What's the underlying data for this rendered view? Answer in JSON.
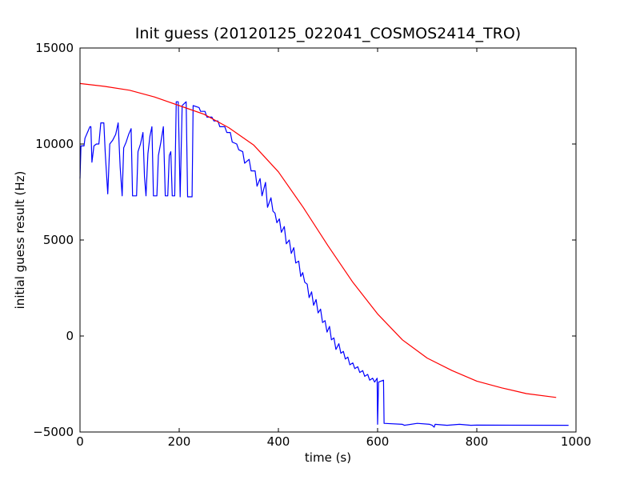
{
  "chart_data": {
    "type": "line",
    "title": "Init guess (20120125_022041_COSMOS2414_TRO)",
    "xlabel": "time (s)",
    "ylabel": "initial guess result (Hz)",
    "xlim": [
      0,
      1000
    ],
    "ylim": [
      -5000,
      15000
    ],
    "x_ticks": [
      0,
      200,
      400,
      600,
      800,
      1000
    ],
    "y_ticks": [
      -5000,
      0,
      5000,
      10000,
      15000
    ],
    "x_tick_labels": [
      "0",
      "200",
      "400",
      "600",
      "800",
      "1000"
    ],
    "y_tick_labels": [
      "−5000",
      "0",
      "5000",
      "10000",
      "15000"
    ],
    "grid": false,
    "legend": "none",
    "series": [
      {
        "color": "#0000ff",
        "points": [
          [
            0,
            8200
          ],
          [
            2,
            9900
          ],
          [
            8,
            9900
          ],
          [
            10,
            10300
          ],
          [
            15,
            10600
          ],
          [
            20,
            10900
          ],
          [
            22,
            10900
          ],
          [
            24,
            9050
          ],
          [
            28,
            9900
          ],
          [
            33,
            10000
          ],
          [
            38,
            10000
          ],
          [
            42,
            11100
          ],
          [
            48,
            11100
          ],
          [
            51,
            9500
          ],
          [
            56,
            7400
          ],
          [
            60,
            10000
          ],
          [
            66,
            10200
          ],
          [
            72,
            10500
          ],
          [
            77,
            11100
          ],
          [
            81,
            8800
          ],
          [
            85,
            7300
          ],
          [
            88,
            9800
          ],
          [
            93,
            10100
          ],
          [
            98,
            10500
          ],
          [
            103,
            10800
          ],
          [
            106,
            7300
          ],
          [
            114,
            7300
          ],
          [
            117,
            9600
          ],
          [
            122,
            10000
          ],
          [
            127,
            10600
          ],
          [
            130,
            8300
          ],
          [
            133,
            7300
          ],
          [
            137,
            9500
          ],
          [
            141,
            10400
          ],
          [
            145,
            10900
          ],
          [
            148,
            7300
          ],
          [
            155,
            7300
          ],
          [
            158,
            9400
          ],
          [
            163,
            10100
          ],
          [
            168,
            10900
          ],
          [
            172,
            7300
          ],
          [
            177,
            7300
          ],
          [
            180,
            9400
          ],
          [
            183,
            9600
          ],
          [
            186,
            7300
          ],
          [
            191,
            7300
          ],
          [
            194,
            12200
          ],
          [
            198,
            12200
          ],
          [
            202,
            7250
          ],
          [
            206,
            12000
          ],
          [
            210,
            12100
          ],
          [
            214,
            12200
          ],
          [
            217,
            7250
          ],
          [
            226,
            7250
          ],
          [
            228,
            12000
          ],
          [
            240,
            11900
          ],
          [
            243,
            11700
          ],
          [
            252,
            11700
          ],
          [
            256,
            11400
          ],
          [
            266,
            11400
          ],
          [
            270,
            11200
          ],
          [
            278,
            11200
          ],
          [
            282,
            10900
          ],
          [
            292,
            10900
          ],
          [
            296,
            10600
          ],
          [
            303,
            10600
          ],
          [
            307,
            10100
          ],
          [
            316,
            10000
          ],
          [
            320,
            9700
          ],
          [
            328,
            9600
          ],
          [
            332,
            9000
          ],
          [
            341,
            9200
          ],
          [
            345,
            8600
          ],
          [
            353,
            8600
          ],
          [
            357,
            7800
          ],
          [
            363,
            8200
          ],
          [
            367,
            7300
          ],
          [
            374,
            8000
          ],
          [
            378,
            6700
          ],
          [
            385,
            7200
          ],
          [
            389,
            6500
          ],
          [
            393,
            6400
          ],
          [
            397,
            5900
          ],
          [
            402,
            6100
          ],
          [
            406,
            5400
          ],
          [
            412,
            5700
          ],
          [
            416,
            4800
          ],
          [
            422,
            5000
          ],
          [
            426,
            4300
          ],
          [
            431,
            4600
          ],
          [
            435,
            3800
          ],
          [
            441,
            3900
          ],
          [
            445,
            3100
          ],
          [
            449,
            3300
          ],
          [
            453,
            2800
          ],
          [
            458,
            2700
          ],
          [
            462,
            2000
          ],
          [
            467,
            2300
          ],
          [
            471,
            1600
          ],
          [
            476,
            1900
          ],
          [
            480,
            1200
          ],
          [
            485,
            1400
          ],
          [
            489,
            700
          ],
          [
            494,
            800
          ],
          [
            498,
            200
          ],
          [
            503,
            500
          ],
          [
            507,
            -200
          ],
          [
            512,
            -100
          ],
          [
            516,
            -700
          ],
          [
            522,
            -400
          ],
          [
            526,
            -900
          ],
          [
            531,
            -800
          ],
          [
            535,
            -1200
          ],
          [
            540,
            -1100
          ],
          [
            544,
            -1500
          ],
          [
            550,
            -1400
          ],
          [
            554,
            -1700
          ],
          [
            560,
            -1600
          ],
          [
            564,
            -1900
          ],
          [
            570,
            -1800
          ],
          [
            574,
            -2100
          ],
          [
            580,
            -2000
          ],
          [
            584,
            -2300
          ],
          [
            590,
            -2200
          ],
          [
            594,
            -2400
          ],
          [
            599,
            -2200
          ],
          [
            600,
            -4600
          ],
          [
            602,
            -2400
          ],
          [
            612,
            -2300
          ],
          [
            613,
            -4550
          ],
          [
            650,
            -4600
          ],
          [
            654,
            -4650
          ],
          [
            680,
            -4550
          ],
          [
            705,
            -4600
          ],
          [
            710,
            -4650
          ],
          [
            714,
            -4750
          ],
          [
            716,
            -4600
          ],
          [
            740,
            -4650
          ],
          [
            765,
            -4600
          ],
          [
            788,
            -4650
          ],
          [
            800,
            -4640
          ],
          [
            985,
            -4650
          ]
        ]
      },
      {
        "color": "#ff0000",
        "points": [
          [
            0,
            13150
          ],
          [
            50,
            13000
          ],
          [
            100,
            12800
          ],
          [
            150,
            12450
          ],
          [
            200,
            12000
          ],
          [
            250,
            11550
          ],
          [
            300,
            10850
          ],
          [
            350,
            9950
          ],
          [
            400,
            8550
          ],
          [
            450,
            6700
          ],
          [
            500,
            4700
          ],
          [
            550,
            2800
          ],
          [
            600,
            1150
          ],
          [
            650,
            -200
          ],
          [
            700,
            -1150
          ],
          [
            750,
            -1800
          ],
          [
            800,
            -2350
          ],
          [
            850,
            -2700
          ],
          [
            900,
            -3000
          ],
          [
            960,
            -3200
          ]
        ]
      }
    ]
  }
}
